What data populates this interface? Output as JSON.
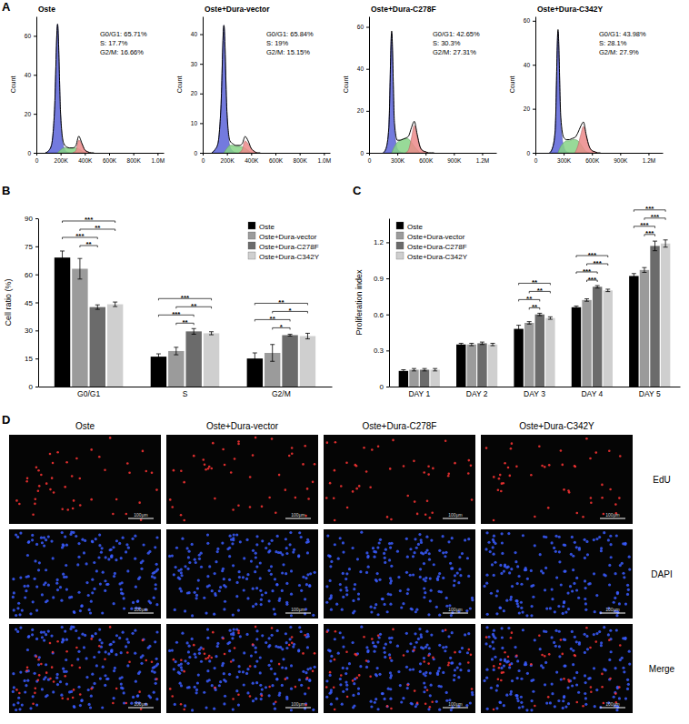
{
  "panels": [
    "A",
    "B",
    "C",
    "D"
  ],
  "chart_data": [
    {
      "type": "area",
      "title": "Oste",
      "y_label": "Count",
      "annotations": [
        "G0/G1: 65.71%",
        "S: 17.7%",
        "G2/M: 16.66%"
      ],
      "x": [
        75000,
        100000,
        125000,
        150000,
        175000,
        200000,
        225000,
        250000,
        275000,
        300000,
        325000,
        350000,
        375000,
        400000,
        425000,
        450000,
        475000
      ],
      "xlim": [
        0,
        1050000
      ],
      "xticks": [
        0,
        {
          "value": 200000,
          "label": "200K"
        },
        {
          "value": 400000,
          "label": "400K"
        },
        {
          "value": 600000,
          "label": "600K"
        },
        {
          "value": 800000,
          "label": "800K"
        },
        {
          "value": 1000000,
          "label": "1.0M"
        }
      ],
      "ylim": [
        0,
        70
      ],
      "yticks": [
        0,
        20,
        40,
        60
      ],
      "series": [
        {
          "color": "#5b63d8",
          "values": [
            0,
            1,
            4,
            22,
            66,
            19,
            3,
            0.5,
            0,
            null,
            null,
            null,
            null,
            null,
            null,
            null,
            null
          ]
        },
        {
          "color": "#86d486",
          "values": [
            null,
            null,
            null,
            null,
            0,
            1.5,
            2.5,
            2.5,
            2.5,
            2.5,
            2.5,
            2,
            1,
            0,
            null,
            null,
            null
          ]
        },
        {
          "color": "#ec8a8a",
          "values": [
            null,
            null,
            null,
            null,
            null,
            null,
            null,
            null,
            null,
            0,
            1,
            6.5,
            4.5,
            1.5,
            0.5,
            0,
            null
          ]
        },
        {
          "color": "#000000",
          "type": "line",
          "values": [
            0,
            1,
            4,
            22,
            66,
            20,
            5,
            3,
            2.5,
            2.5,
            3.5,
            8.5,
            5,
            1.5,
            0.5,
            0,
            0
          ]
        }
      ]
    },
    {
      "type": "area",
      "title": "Oste+Dura-vector",
      "y_label": "Count",
      "annotations": [
        "G0/G1: 65.84%",
        "S: 19%",
        "G2/M: 15.15%"
      ],
      "x": [
        75000,
        100000,
        125000,
        150000,
        175000,
        200000,
        225000,
        250000,
        275000,
        300000,
        325000,
        350000,
        375000,
        400000,
        425000,
        450000,
        475000
      ],
      "xlim": [
        0,
        1050000
      ],
      "xticks": [
        0,
        {
          "value": 200000,
          "label": "200K"
        },
        {
          "value": 400000,
          "label": "400K"
        },
        {
          "value": 600000,
          "label": "600K"
        },
        {
          "value": 800000,
          "label": "800K"
        },
        {
          "value": 1000000,
          "label": "1.0M"
        }
      ],
      "ylim": [
        0,
        46
      ],
      "yticks": [
        0,
        10,
        20,
        30,
        40
      ],
      "series": [
        {
          "color": "#5b63d8",
          "values": [
            0,
            1,
            3,
            15,
            43,
            13,
            2,
            0.5,
            0,
            null,
            null,
            null,
            null,
            null,
            null,
            null,
            null
          ]
        },
        {
          "color": "#86d486",
          "values": [
            null,
            null,
            null,
            null,
            0,
            1.5,
            2.5,
            2.5,
            2.2,
            2.2,
            2,
            1.5,
            0.8,
            0,
            null,
            null,
            null
          ]
        },
        {
          "color": "#ec8a8a",
          "values": [
            null,
            null,
            null,
            null,
            null,
            null,
            null,
            null,
            null,
            0,
            1,
            4,
            3,
            1.5,
            0.5,
            0,
            null
          ]
        },
        {
          "color": "#000000",
          "type": "line",
          "values": [
            0,
            1,
            3,
            15,
            43,
            14,
            4,
            3,
            2.5,
            2.5,
            3,
            5.5,
            4,
            1.5,
            0.5,
            0,
            0
          ]
        }
      ]
    },
    {
      "type": "area",
      "title": "Oste+Dura-C278F",
      "y_label": "Count",
      "annotations": [
        "G0/G1: 42.65%",
        "S: 30.3%",
        "G2/M: 27.31%"
      ],
      "x": [
        150000,
        180000,
        210000,
        240000,
        270000,
        300000,
        330000,
        360000,
        390000,
        420000,
        450000,
        480000,
        510000,
        540000,
        570000,
        600000,
        630000,
        660000,
        690000
      ],
      "xlim": [
        0,
        1350000
      ],
      "xticks": [
        0,
        {
          "value": 300000,
          "label": "300K"
        },
        {
          "value": 600000,
          "label": "600K"
        },
        {
          "value": 900000,
          "label": "900K"
        },
        {
          "value": 1200000,
          "label": "1.2M"
        }
      ],
      "ylim": [
        0,
        65
      ],
      "yticks": [
        0,
        20,
        40,
        60
      ],
      "series": [
        {
          "color": "#5b63d8",
          "values": [
            0,
            2,
            12,
            57,
            11,
            2,
            0.5,
            0,
            null,
            null,
            null,
            null,
            null,
            null,
            null,
            null,
            null,
            null,
            null
          ]
        },
        {
          "color": "#86d486",
          "values": [
            null,
            null,
            null,
            0,
            3,
            5,
            6,
            6.5,
            7,
            6.5,
            5,
            3,
            1.5,
            0,
            null,
            null,
            null,
            null,
            null
          ]
        },
        {
          "color": "#ec8a8a",
          "values": [
            null,
            null,
            null,
            null,
            null,
            null,
            null,
            null,
            0,
            1.5,
            7,
            13,
            8,
            3,
            1,
            0.5,
            0,
            null,
            null
          ]
        },
        {
          "color": "#000000",
          "type": "line",
          "values": [
            0,
            2,
            12,
            58,
            14,
            6,
            6,
            6.5,
            7,
            8,
            12,
            15,
            9,
            3,
            1,
            0.5,
            0,
            0,
            0
          ]
        }
      ]
    },
    {
      "type": "area",
      "title": "Oste+Dura-C342Y",
      "y_label": "Count",
      "annotations": [
        "G0/G1: 43.98%",
        "S: 28.1%",
        "G2/M: 27.9%"
      ],
      "x": [
        150000,
        180000,
        210000,
        240000,
        270000,
        300000,
        330000,
        360000,
        390000,
        420000,
        450000,
        480000,
        510000,
        540000,
        570000,
        600000,
        630000,
        660000,
        690000
      ],
      "xlim": [
        0,
        1350000
      ],
      "xticks": [
        0,
        {
          "value": 300000,
          "label": "300K"
        },
        {
          "value": 600000,
          "label": "600K"
        },
        {
          "value": 900000,
          "label": "900K"
        },
        {
          "value": 1200000,
          "label": "1.2M"
        }
      ],
      "ylim": [
        0,
        62
      ],
      "yticks": [
        0,
        20,
        40,
        60
      ],
      "series": [
        {
          "color": "#5b63d8",
          "values": [
            0,
            2,
            10,
            55,
            13,
            3,
            0.5,
            0,
            null,
            null,
            null,
            null,
            null,
            null,
            null,
            null,
            null,
            null,
            null
          ]
        },
        {
          "color": "#86d486",
          "values": [
            null,
            null,
            null,
            0,
            3,
            4.5,
            5.5,
            5.5,
            6,
            6,
            5.5,
            4,
            2,
            0.5,
            0,
            null,
            null,
            null,
            null
          ]
        },
        {
          "color": "#ec8a8a",
          "values": [
            null,
            null,
            null,
            null,
            null,
            null,
            null,
            null,
            null,
            0,
            3,
            8,
            12,
            7.5,
            3,
            1,
            0.5,
            0,
            null
          ]
        },
        {
          "color": "#000000",
          "type": "line",
          "values": [
            0,
            2,
            10,
            56,
            16,
            7,
            6,
            6,
            6.5,
            7,
            9,
            12,
            14,
            8,
            3,
            1,
            0.5,
            0,
            0
          ]
        }
      ]
    },
    {
      "type": "bar",
      "y_label": "Cell ratio (%)",
      "legend": "top-right",
      "categories": [
        "G0/G1",
        "S",
        "G2/M"
      ],
      "ylim": [
        0,
        90
      ],
      "yticks": [
        0,
        15,
        30,
        45,
        60,
        75,
        90
      ],
      "series": [
        {
          "name": "Oste",
          "color": "#000000",
          "values": [
            69,
            16,
            15
          ],
          "errors": [
            3.5,
            1.5,
            3
          ]
        },
        {
          "name": "Oste+Dura-vector",
          "color": "#9b9b9b",
          "values": [
            63,
            19,
            18
          ],
          "errors": [
            5.5,
            2,
            4.5
          ]
        },
        {
          "name": "Oste+Dura-C278F",
          "color": "#6b6b6b",
          "values": [
            42.5,
            29.5,
            27.5
          ],
          "errors": [
            1.2,
            1.5,
            0.5
          ]
        },
        {
          "name": "Oste+Dura-C342Y",
          "color": "#cfcfcf",
          "values": [
            44,
            28.5,
            27
          ],
          "errors": [
            1.2,
            0.8,
            1.5
          ]
        }
      ],
      "annotations": [
        {
          "text": "***",
          "category": 0,
          "series": [
            0,
            3
          ]
        },
        {
          "text": "**",
          "category": 0,
          "series": [
            1,
            3
          ]
        },
        {
          "text": "***",
          "category": 0,
          "series": [
            0,
            2
          ]
        },
        {
          "text": "**",
          "category": 0,
          "series": [
            1,
            2
          ]
        },
        {
          "text": "***",
          "category": 1,
          "series": [
            0,
            3
          ]
        },
        {
          "text": "**",
          "category": 1,
          "series": [
            1,
            3
          ]
        },
        {
          "text": "***",
          "category": 1,
          "series": [
            0,
            2
          ]
        },
        {
          "text": "**",
          "category": 1,
          "series": [
            1,
            2
          ]
        },
        {
          "text": "**",
          "category": 2,
          "series": [
            0,
            3
          ]
        },
        {
          "text": "*",
          "category": 2,
          "series": [
            1,
            3
          ]
        },
        {
          "text": "**",
          "category": 2,
          "series": [
            0,
            2
          ]
        },
        {
          "text": "*",
          "category": 2,
          "series": [
            1,
            2
          ]
        }
      ]
    },
    {
      "type": "bar",
      "y_label": "Proliferation index",
      "legend": "top-left",
      "categories": [
        "DAY 1",
        "DAY 2",
        "DAY 3",
        "DAY 4",
        "DAY 5"
      ],
      "ylim": [
        0,
        1.4
      ],
      "yticks": [
        0,
        0.3,
        0.6,
        0.9,
        1.2
      ],
      "series": [
        {
          "name": "Oste",
          "color": "#000000",
          "values": [
            0.13,
            0.35,
            0.48,
            0.66,
            0.92
          ],
          "errors": [
            0.01,
            0.01,
            0.03,
            0.01,
            0.02
          ]
        },
        {
          "name": "Oste+Dura-vector",
          "color": "#9b9b9b",
          "values": [
            0.14,
            0.35,
            0.53,
            0.72,
            0.97
          ],
          "errors": [
            0.01,
            0.01,
            0.01,
            0.01,
            0.02
          ]
        },
        {
          "name": "Oste+Dura-C278F",
          "color": "#6b6b6b",
          "values": [
            0.14,
            0.36,
            0.6,
            0.83,
            1.17
          ],
          "errors": [
            0.01,
            0.01,
            0.01,
            0.01,
            0.04
          ]
        },
        {
          "name": "Oste+Dura-C342Y",
          "color": "#cfcfcf",
          "values": [
            0.14,
            0.35,
            0.57,
            0.8,
            1.19
          ],
          "errors": [
            0.01,
            0.01,
            0.01,
            0.01,
            0.03
          ]
        }
      ],
      "annotations": [
        {
          "text": "**",
          "category": 2,
          "series": [
            0,
            3
          ]
        },
        {
          "text": "**",
          "category": 2,
          "series": [
            1,
            3
          ]
        },
        {
          "text": "**",
          "category": 2,
          "series": [
            0,
            2
          ]
        },
        {
          "text": "**",
          "category": 2,
          "series": [
            1,
            2
          ]
        },
        {
          "text": "***",
          "category": 3,
          "series": [
            0,
            3
          ]
        },
        {
          "text": "***",
          "category": 3,
          "series": [
            1,
            3
          ]
        },
        {
          "text": "***",
          "category": 3,
          "series": [
            0,
            2
          ]
        },
        {
          "text": "***",
          "category": 3,
          "series": [
            1,
            2
          ]
        },
        {
          "text": "***",
          "category": 4,
          "series": [
            0,
            3
          ]
        },
        {
          "text": "***",
          "category": 4,
          "series": [
            1,
            3
          ]
        },
        {
          "text": "***",
          "category": 4,
          "series": [
            0,
            2
          ]
        },
        {
          "text": "***",
          "category": 4,
          "series": [
            1,
            2
          ]
        }
      ]
    }
  ],
  "image_grid": {
    "columns": [
      "Oste",
      "Oste+Dura-vector",
      "Oste+Dura-C278F",
      "Oste+Dura-C342Y"
    ],
    "rows": [
      "EdU",
      "DAPI",
      "Merge"
    ],
    "scale_bar": "100μm"
  }
}
